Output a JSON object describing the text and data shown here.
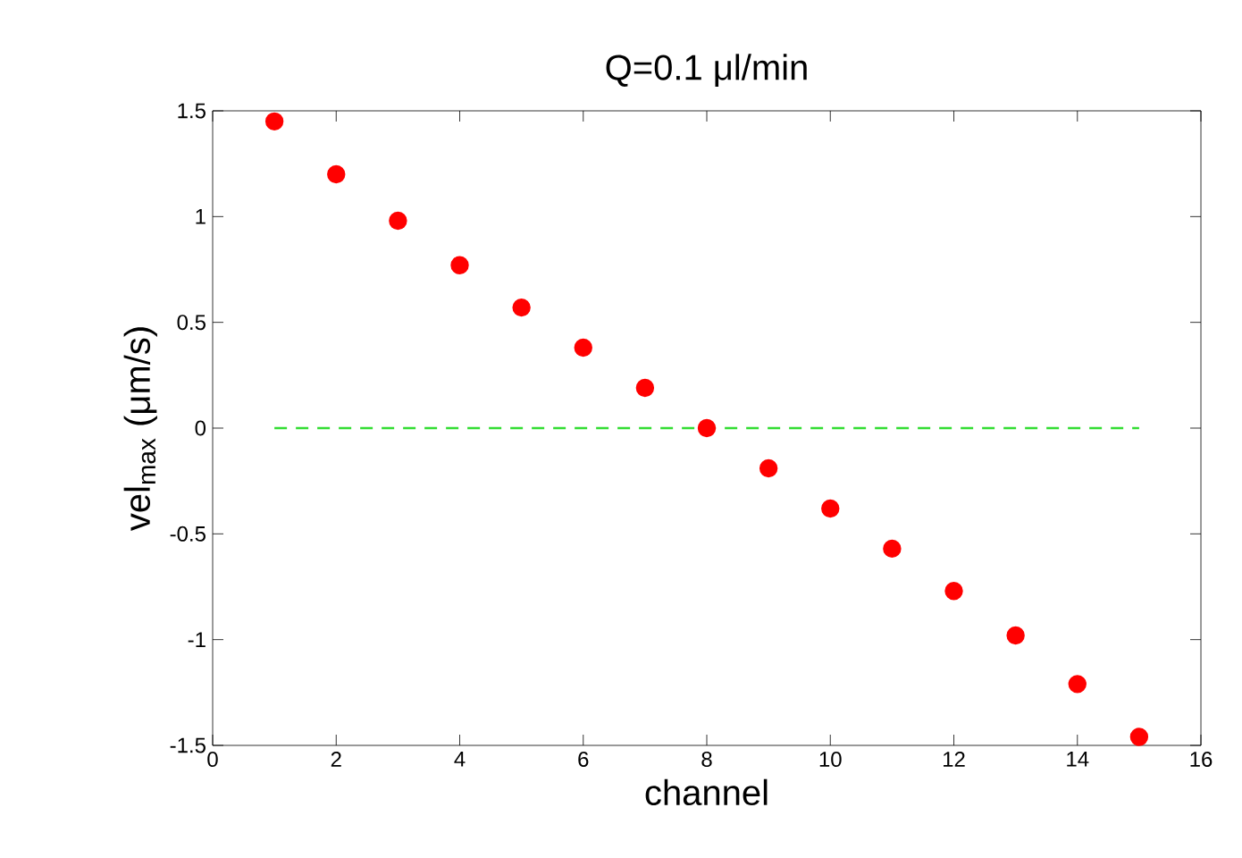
{
  "chart_data": {
    "type": "scatter",
    "title": "Q=0.1 μl/min",
    "xlabel": "channel",
    "ylabel": "vel$_{max}$ (μm/s)",
    "xlim": [
      0,
      16
    ],
    "ylim": [
      -1.5,
      1.5
    ],
    "xticks": [
      0,
      2,
      4,
      6,
      8,
      10,
      12,
      14,
      16
    ],
    "yticks": [
      -1.5,
      -1,
      -0.5,
      0,
      0.5,
      1,
      1.5
    ],
    "series": [
      {
        "type": "line",
        "color": "#33dd33",
        "line_style": "dashed",
        "marker": "none",
        "x": [
          1,
          15
        ],
        "values": [
          0,
          0
        ]
      },
      {
        "color": "#ff0000",
        "marker": "circle",
        "x": [
          1,
          2,
          3,
          4,
          5,
          6,
          7,
          8,
          9,
          10,
          11,
          12,
          13,
          14,
          15
        ],
        "values": [
          1.45,
          1.2,
          0.98,
          0.77,
          0.57,
          0.38,
          0.19,
          0,
          -0.19,
          -0.38,
          -0.57,
          -0.77,
          -0.98,
          -1.21,
          -1.46
        ]
      }
    ]
  }
}
